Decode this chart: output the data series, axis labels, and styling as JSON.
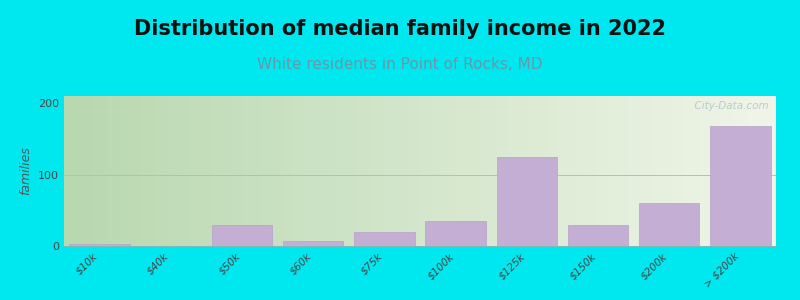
{
  "title": "Distribution of median family income in 2022",
  "subtitle": "White residents in Point of Rocks, MD",
  "ylabel": "families",
  "categories": [
    "$10k",
    "$40k",
    "$50k",
    "$60k",
    "$75k",
    "$100k",
    "$125k",
    "$150k",
    "$200k",
    "> $200k"
  ],
  "values": [
    3,
    0,
    30,
    7,
    20,
    35,
    125,
    30,
    60,
    168
  ],
  "bar_color": "#c5aed4",
  "bar_edge_color": "#b8a0cc",
  "background_outer": "#00e8ef",
  "ylim": [
    0,
    210
  ],
  "yticks": [
    0,
    100,
    200
  ],
  "grid_color": "#e8a8a8",
  "title_fontsize": 15,
  "subtitle_fontsize": 11,
  "subtitle_color": "#6699aa",
  "ylabel_fontsize": 9,
  "watermark": "  City-Data.com",
  "bg_left_color": "#b8d8b0",
  "bg_right_color": "#f0f5e8"
}
